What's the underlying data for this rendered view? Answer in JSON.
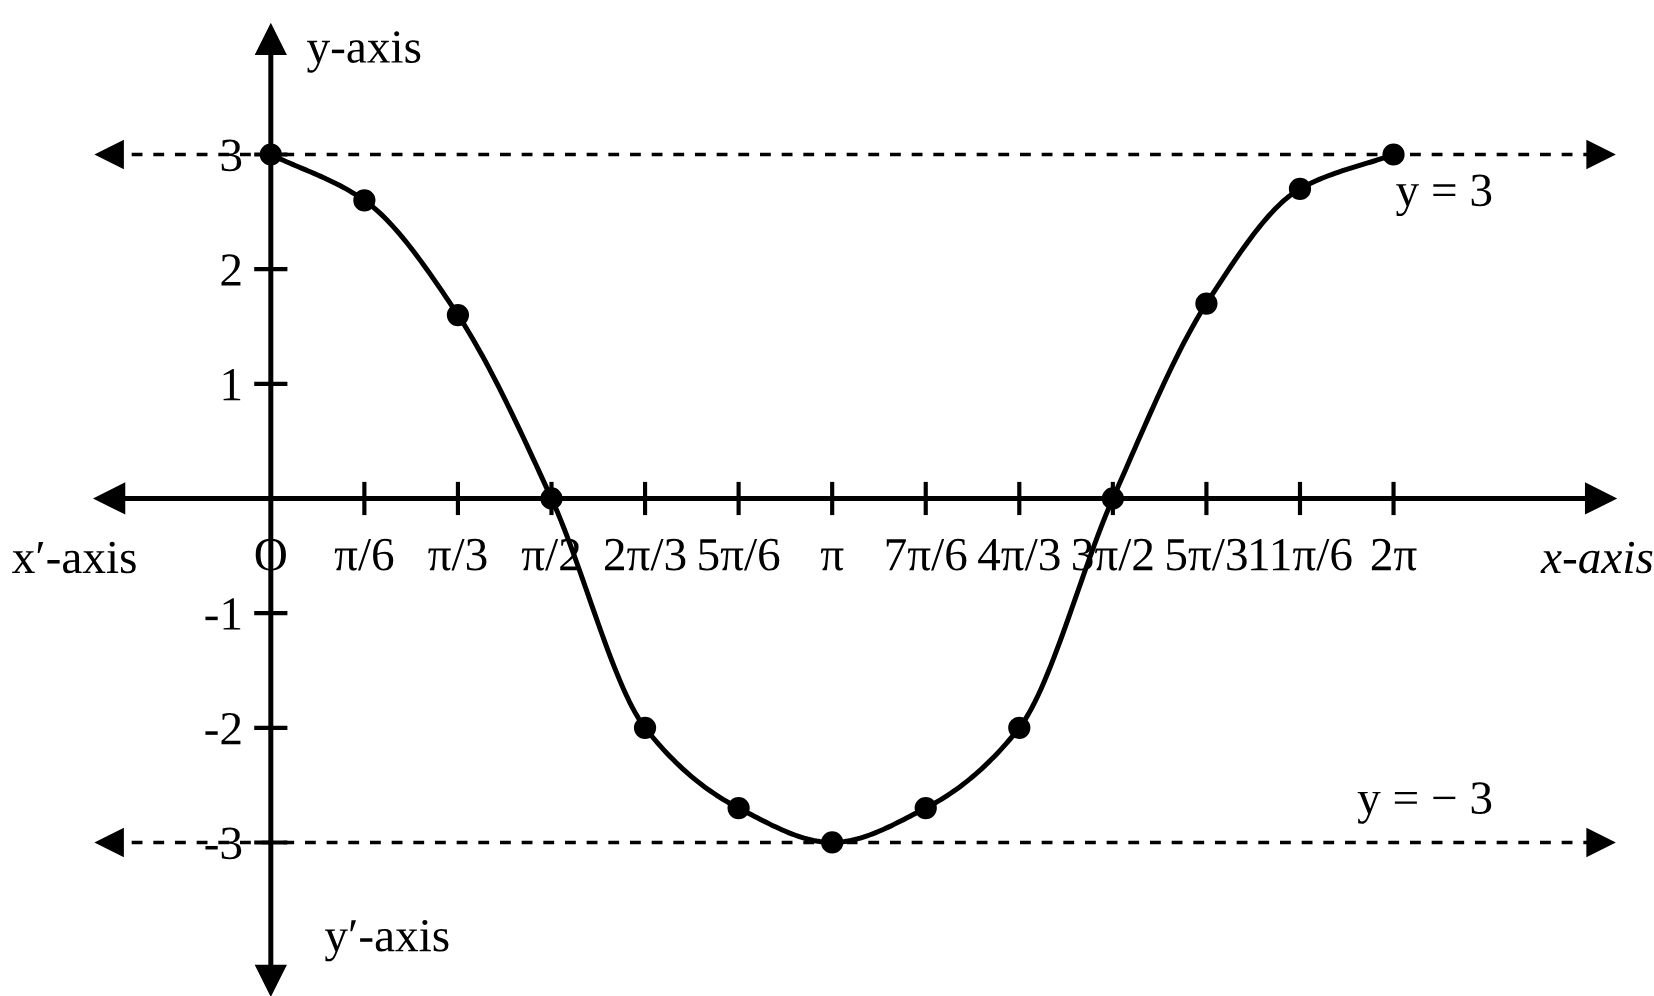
{
  "chart_data": {
    "type": "line",
    "xlabel": "x-axis",
    "ylabel": "y-axis",
    "x": [
      0,
      0.5236,
      1.0472,
      1.5708,
      2.0944,
      2.618,
      3.1416,
      3.6652,
      4.1888,
      4.7124,
      5.236,
      5.7596,
      6.2832
    ],
    "series": [
      {
        "color": "#000000",
        "values": [
          3,
          2.6,
          1.6,
          0,
          -2,
          -2.7,
          -3,
          -2.7,
          -2,
          0,
          1.7,
          2.7,
          3
        ]
      }
    ],
    "marker": "circle",
    "line_style": "solid",
    "grid": false,
    "legend": false,
    "xlim": [
      -0.9,
      7.44
    ],
    "ylim": [
      -4.2,
      4.0
    ],
    "xticks": [
      {
        "value": 0,
        "label": "O"
      },
      {
        "value": 0.5236,
        "label": "π/6"
      },
      {
        "value": 1.0472,
        "label": "π/3"
      },
      {
        "value": 1.5708,
        "label": "π/2"
      },
      {
        "value": 2.0944,
        "label": "2π/3"
      },
      {
        "value": 2.618,
        "label": "5π/6"
      },
      {
        "value": 3.1416,
        "label": "π"
      },
      {
        "value": 3.6652,
        "label": "7π/6"
      },
      {
        "value": 4.1888,
        "label": "4π/3"
      },
      {
        "value": 4.7124,
        "label": "3π/2"
      },
      {
        "value": 5.236,
        "label": "5π/3"
      },
      {
        "value": 5.7596,
        "label": "11π/6"
      },
      {
        "value": 6.2832,
        "label": "2π"
      }
    ],
    "yticks": [
      -3,
      -2,
      -1,
      1,
      2,
      3
    ],
    "ref_lines": [
      {
        "axis": "y",
        "value": 3,
        "label": "y = 3",
        "line_style": "dashed",
        "color": "#000000"
      },
      {
        "axis": "y",
        "value": -3,
        "label": "y = − 3",
        "line_style": "dashed",
        "color": "#000000"
      }
    ],
    "annotations": [
      "x′-axis",
      "y′-axis"
    ]
  }
}
